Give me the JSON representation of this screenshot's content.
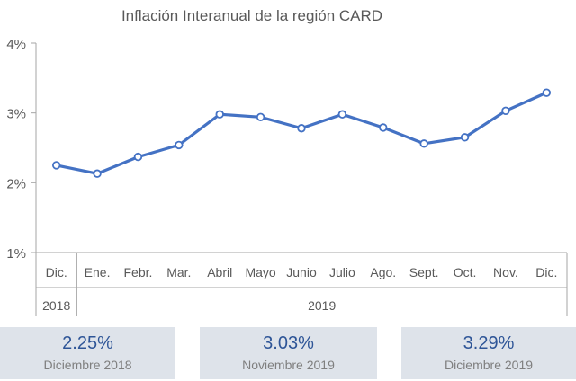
{
  "chart_data": {
    "type": "line",
    "title": "Inflación Interanual de la región CARD",
    "categories": [
      "Dic.",
      "Ene.",
      "Febr.",
      "Mar.",
      "Abril",
      "Mayo",
      "Junio",
      "Julio",
      "Ago.",
      "Sept.",
      "Oct.",
      "Nov.",
      "Dic."
    ],
    "year_groups": [
      {
        "label": "2018",
        "count": 1
      },
      {
        "label": "2019",
        "count": 12
      }
    ],
    "series": [
      {
        "values": [
          2.25,
          2.13,
          2.37,
          2.54,
          2.98,
          2.94,
          2.78,
          2.98,
          2.79,
          2.56,
          2.65,
          3.03,
          3.29
        ],
        "color": "#4472c4"
      }
    ],
    "ylim": [
      1,
      4
    ],
    "yticks": [
      {
        "value": 1,
        "label": "1%"
      },
      {
        "value": 2,
        "label": "2%"
      },
      {
        "value": 3,
        "label": "3%"
      },
      {
        "value": 4,
        "label": "4%"
      }
    ],
    "grid": false
  },
  "cards": [
    {
      "value": "2.25%",
      "label": "Diciembre 2018"
    },
    {
      "value": "3.03%",
      "label": "Noviembre 2019"
    },
    {
      "value": "3.29%",
      "label": "Diciembre 2019"
    }
  ]
}
